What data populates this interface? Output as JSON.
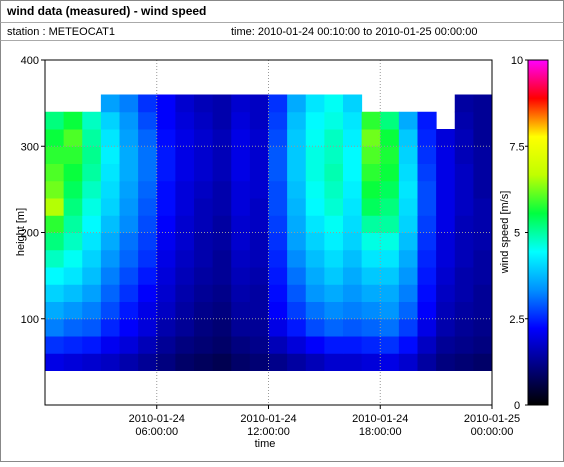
{
  "header": {
    "title": "wind data (measured) - wind speed",
    "station": "station : METEOCAT1",
    "time": "time: 2010-01-24 00:10:00 to 2010-01-25 00:00:00"
  },
  "chart_data": {
    "type": "heatmap",
    "x_label": "time",
    "y_label": "height [m]",
    "colorbar_label": "wind speed [m/s]",
    "xlim": [
      0,
      24
    ],
    "xticks": [
      {
        "value": 6,
        "label": "2010-01-24 06:00:00"
      },
      {
        "value": 12,
        "label": "2010-01-24 12:00:00"
      },
      {
        "value": 18,
        "label": "2010-01-24 18:00:00"
      },
      {
        "value": 24,
        "label": "2010-01-25 00:00:00"
      }
    ],
    "ylim": [
      0,
      400
    ],
    "yticks": [
      100,
      200,
      300,
      400
    ],
    "clim": [
      0,
      10
    ],
    "cticks": [
      0,
      2.5,
      5,
      7.5,
      10
    ],
    "colormap": [
      "#000000",
      "#000080",
      "#0000ff",
      "#0090ff",
      "#00ffff",
      "#00ff40",
      "#c0ff00",
      "#ffff00",
      "#ff0000",
      "#ff00ff"
    ],
    "grid": true,
    "x": [
      0.5,
      1.5,
      2.5,
      3.5,
      4.5,
      5.5,
      6.5,
      7.5,
      8.5,
      9.5,
      10.5,
      11.5,
      12.5,
      13.5,
      14.5,
      15.5,
      16.5,
      17.5,
      18.5,
      19.5,
      20.5,
      21.5,
      22.5,
      23.5
    ],
    "y": [
      50,
      70,
      90,
      110,
      130,
      150,
      170,
      190,
      210,
      230,
      250,
      270,
      290,
      310,
      330,
      350
    ],
    "z": [
      [
        2.0,
        1.9,
        1.8,
        1.7,
        1.5,
        1.3,
        1.1,
        0.9,
        0.8,
        0.7,
        0.9,
        1.0,
        1.2,
        1.4,
        1.6,
        1.8,
        1.8,
        1.9,
        2.0,
        1.8,
        1.4,
        1.1,
        1.0,
        0.9
      ],
      [
        2.6,
        2.5,
        2.4,
        2.1,
        1.9,
        1.6,
        1.3,
        1.1,
        1.0,
        0.9,
        1.1,
        1.2,
        1.6,
        1.9,
        2.2,
        2.4,
        2.4,
        2.5,
        2.6,
        2.3,
        1.7,
        1.3,
        1.2,
        1.1
      ],
      [
        3.2,
        3.0,
        2.9,
        2.5,
        2.2,
        1.9,
        1.5,
        1.3,
        1.1,
        1.0,
        1.3,
        1.3,
        2.0,
        2.4,
        2.8,
        3.0,
        2.9,
        3.0,
        3.1,
        2.7,
        2.0,
        1.5,
        1.3,
        1.2
      ],
      [
        3.6,
        3.4,
        3.2,
        2.8,
        2.4,
        2.0,
        1.7,
        1.4,
        1.2,
        1.1,
        1.4,
        1.4,
        2.2,
        2.7,
        3.1,
        3.3,
        3.2,
        3.3,
        3.4,
        3.0,
        2.2,
        1.6,
        1.4,
        1.3
      ],
      [
        4.0,
        3.8,
        3.5,
        3.0,
        2.6,
        2.2,
        1.8,
        1.5,
        1.3,
        1.2,
        1.5,
        1.4,
        2.3,
        2.9,
        3.4,
        3.6,
        3.4,
        3.6,
        3.6,
        3.2,
        2.3,
        1.7,
        1.5,
        1.3
      ],
      [
        4.4,
        4.2,
        3.8,
        3.2,
        2.8,
        2.4,
        1.9,
        1.6,
        1.4,
        1.3,
        1.6,
        1.5,
        2.4,
        3.1,
        3.6,
        3.9,
        3.6,
        3.9,
        3.9,
        3.4,
        2.4,
        1.8,
        1.5,
        1.4
      ],
      [
        4.8,
        4.5,
        4.0,
        3.4,
        3.0,
        2.6,
        2.0,
        1.7,
        1.5,
        1.3,
        1.7,
        1.6,
        2.5,
        3.3,
        3.8,
        4.1,
        3.8,
        4.2,
        4.2,
        3.6,
        2.5,
        1.9,
        1.6,
        1.4
      ],
      [
        5.2,
        4.8,
        4.2,
        3.6,
        3.1,
        2.7,
        2.1,
        1.8,
        1.5,
        1.4,
        1.8,
        1.6,
        2.6,
        3.5,
        4.0,
        4.3,
        4.0,
        4.6,
        4.6,
        3.8,
        2.6,
        1.9,
        1.6,
        1.5
      ],
      [
        5.8,
        5.0,
        4.4,
        3.8,
        3.3,
        2.8,
        2.2,
        1.8,
        1.6,
        1.4,
        1.8,
        1.7,
        2.7,
        3.6,
        4.2,
        4.5,
        4.1,
        5.0,
        5.0,
        4.0,
        2.7,
        2.0,
        1.6,
        1.5
      ],
      [
        6.6,
        5.2,
        4.6,
        4.0,
        3.4,
        2.9,
        2.3,
        1.9,
        1.6,
        1.5,
        1.9,
        1.7,
        2.8,
        3.7,
        4.4,
        4.7,
        4.2,
        5.4,
        5.2,
        4.1,
        2.8,
        2.0,
        1.7,
        1.5
      ],
      [
        6.2,
        5.4,
        4.8,
        4.1,
        3.5,
        3.0,
        2.3,
        1.9,
        1.7,
        1.5,
        1.9,
        1.8,
        2.8,
        3.8,
        4.5,
        4.8,
        4.3,
        5.6,
        5.4,
        4.2,
        2.8,
        2.0,
        1.7,
        1.4
      ],
      [
        6.0,
        5.6,
        5.0,
        4.2,
        3.6,
        3.1,
        2.4,
        2.0,
        1.8,
        1.6,
        2.0,
        1.8,
        2.9,
        3.9,
        4.6,
        4.9,
        4.4,
        5.8,
        5.6,
        4.1,
        2.7,
        2.0,
        1.7,
        1.4
      ],
      [
        5.8,
        5.8,
        5.1,
        4.3,
        3.6,
        3.1,
        2.4,
        2.0,
        1.8,
        1.6,
        2.0,
        1.8,
        2.9,
        3.9,
        4.6,
        4.8,
        4.4,
        6.0,
        5.7,
        4.0,
        2.6,
        2.0,
        1.6,
        1.4
      ],
      [
        5.6,
        6.0,
        5.0,
        4.2,
        3.5,
        3.0,
        2.3,
        2.0,
        1.8,
        1.6,
        2.0,
        1.8,
        2.8,
        3.9,
        4.5,
        4.8,
        4.3,
        6.2,
        5.6,
        3.9,
        2.5,
        1.9,
        1.6,
        1.3
      ],
      [
        5.2,
        5.6,
        4.8,
        4.0,
        3.4,
        2.8,
        2.2,
        1.9,
        1.7,
        1.5,
        1.9,
        1.7,
        2.7,
        3.8,
        4.4,
        4.6,
        4.2,
        5.8,
        5.2,
        3.6,
        2.4,
        null,
        1.5,
        1.3
      ],
      [
        null,
        null,
        null,
        3.5,
        3.2,
        2.6,
        2.2,
        1.8,
        1.6,
        1.5,
        1.8,
        1.7,
        2.6,
        3.6,
        4.2,
        4.5,
        4.0,
        null,
        null,
        null,
        null,
        null,
        1.4,
        1.3
      ]
    ]
  }
}
